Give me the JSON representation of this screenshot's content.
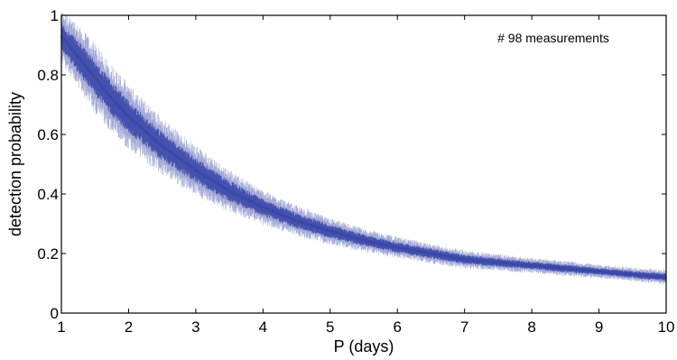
{
  "chart_data": {
    "type": "line",
    "title": "",
    "xlabel": "P (days)",
    "ylabel": "detection probability",
    "annotation": "# 98 measurements",
    "xlim": [
      1,
      10
    ],
    "ylim": [
      0,
      1
    ],
    "xticks": [
      1,
      2,
      3,
      4,
      5,
      6,
      7,
      8,
      9,
      10
    ],
    "yticks": [
      0,
      0.2,
      0.4,
      0.6,
      0.8,
      1
    ],
    "grid": false,
    "legend": "none",
    "series": [
      {
        "color": "#3a47a8",
        "x": [
          1.0,
          1.25,
          1.5,
          1.75,
          2.0,
          2.5,
          3.0,
          3.5,
          4.0,
          4.5,
          5.0,
          5.5,
          6.0,
          6.5,
          7.0,
          7.5,
          8.0,
          8.5,
          9.0,
          9.5,
          10.0
        ],
        "y_center": [
          0.93,
          0.86,
          0.79,
          0.72,
          0.66,
          0.56,
          0.48,
          0.41,
          0.355,
          0.31,
          0.275,
          0.245,
          0.22,
          0.2,
          0.18,
          0.17,
          0.16,
          0.15,
          0.14,
          0.13,
          0.12
        ],
        "y_spread": [
          0.07,
          0.085,
          0.09,
          0.09,
          0.085,
          0.075,
          0.065,
          0.055,
          0.045,
          0.04,
          0.035,
          0.03,
          0.028,
          0.026,
          0.024,
          0.022,
          0.02,
          0.02,
          0.018,
          0.018,
          0.02
        ]
      }
    ]
  }
}
